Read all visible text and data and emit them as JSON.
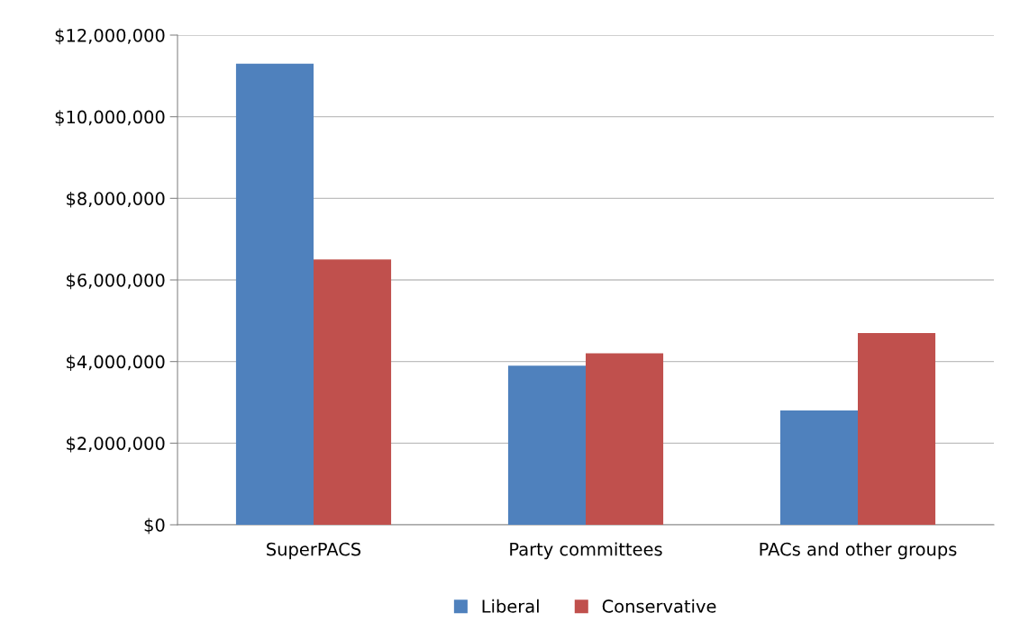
{
  "chart_data": {
    "type": "bar",
    "categories": [
      "SuperPACS",
      "Party committees",
      "PACs and other groups"
    ],
    "series": [
      {
        "name": "Liberal",
        "color": "#4f81bd",
        "values": [
          11300000,
          3900000,
          2800000
        ]
      },
      {
        "name": "Conservative",
        "color": "#c0504d",
        "values": [
          6500000,
          4200000,
          4700000
        ]
      }
    ],
    "ylim": [
      0,
      12000000
    ],
    "yticks": [
      {
        "value": 0,
        "label": "$0"
      },
      {
        "value": 2000000,
        "label": "$2,000,000"
      },
      {
        "value": 4000000,
        "label": "$4,000,000"
      },
      {
        "value": 6000000,
        "label": "$6,000,000"
      },
      {
        "value": 8000000,
        "label": "$8,000,000"
      },
      {
        "value": 10000000,
        "label": "$10,000,000"
      },
      {
        "value": 12000000,
        "label": "$12,000,000"
      }
    ],
    "grid": "y",
    "legend": "bottom"
  }
}
